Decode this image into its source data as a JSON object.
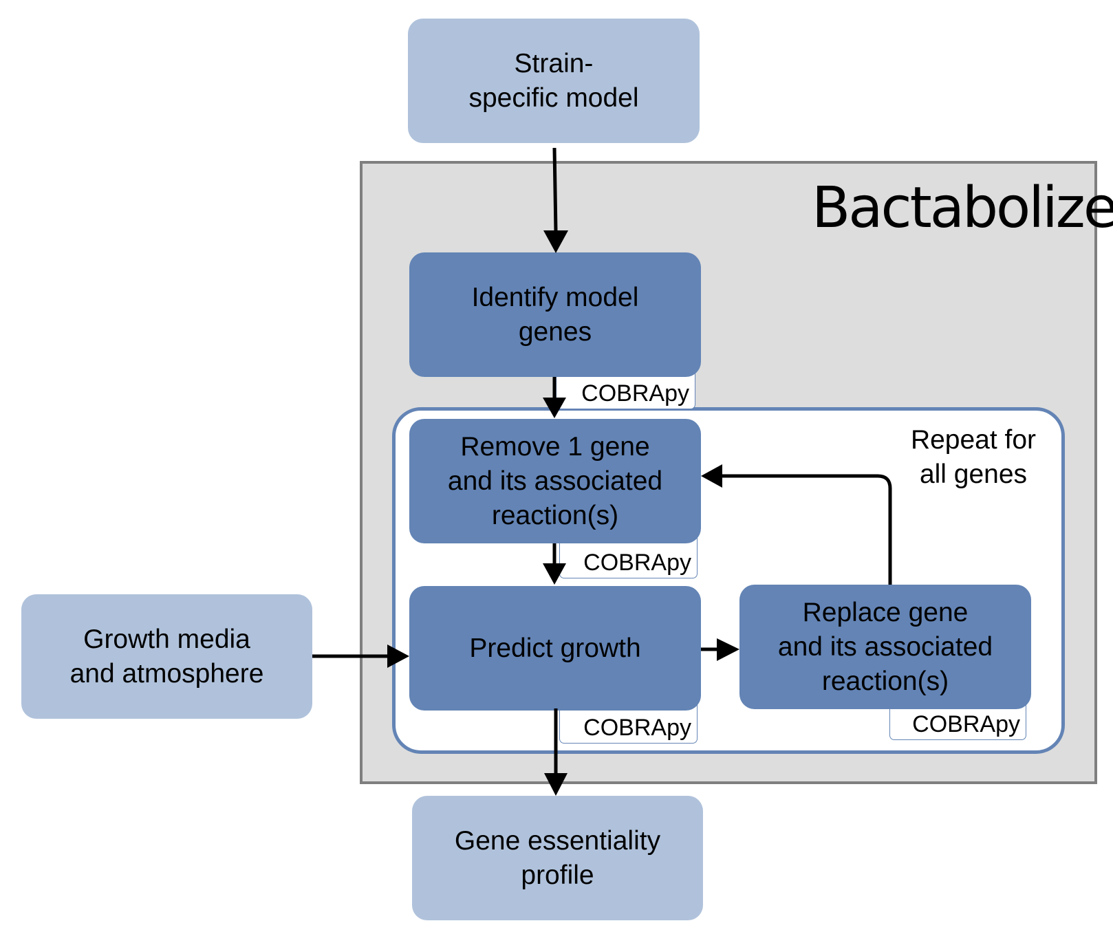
{
  "inputs": {
    "strain_model": "Strain-\nspecific model",
    "growth_media": "Growth media\nand atmosphere"
  },
  "pipeline": {
    "logo": "Bactabolize",
    "identify_genes": "Identify model\ngenes",
    "loop_label": "Repeat for\nall genes",
    "remove_gene": "Remove 1 gene\nand its associated\nreaction(s)",
    "predict_growth": "Predict growth",
    "replace_gene": "Replace gene\nand its associated\nreaction(s)",
    "tool_tag": "COBRApy"
  },
  "output": {
    "essentiality_profile": "Gene essentiality\nprofile"
  }
}
